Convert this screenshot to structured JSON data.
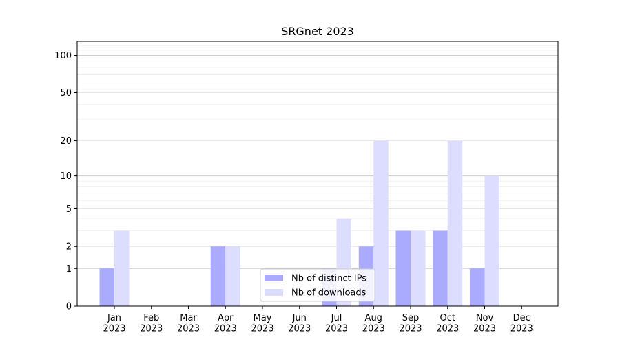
{
  "chart_data": {
    "type": "bar",
    "title": "SRGnet 2023",
    "xlabel": "",
    "ylabel": "",
    "categories": [
      "Jan\n2023",
      "Feb\n2023",
      "Mar\n2023",
      "Apr\n2023",
      "May\n2023",
      "Jun\n2023",
      "Jul\n2023",
      "Aug\n2023",
      "Sep\n2023",
      "Oct\n2023",
      "Nov\n2023",
      "Dec\n2023"
    ],
    "series": [
      {
        "name": "Nb of distinct IPs",
        "values": [
          1,
          0,
          0,
          2,
          0,
          0,
          1,
          2,
          3,
          3,
          1,
          0
        ],
        "color": "#aaaaff"
      },
      {
        "name": "Nb of downloads",
        "values": [
          3,
          0,
          0,
          2,
          0,
          0,
          4,
          20,
          3,
          20,
          10,
          0
        ],
        "color": "#ddddff"
      }
    ],
    "y_scale": "log(1+y)",
    "ylim": [
      0,
      130
    ],
    "y_ticks": [
      0,
      1,
      2,
      5,
      10,
      20,
      50,
      100
    ],
    "grid": true,
    "legend_position": "bottom-center"
  }
}
